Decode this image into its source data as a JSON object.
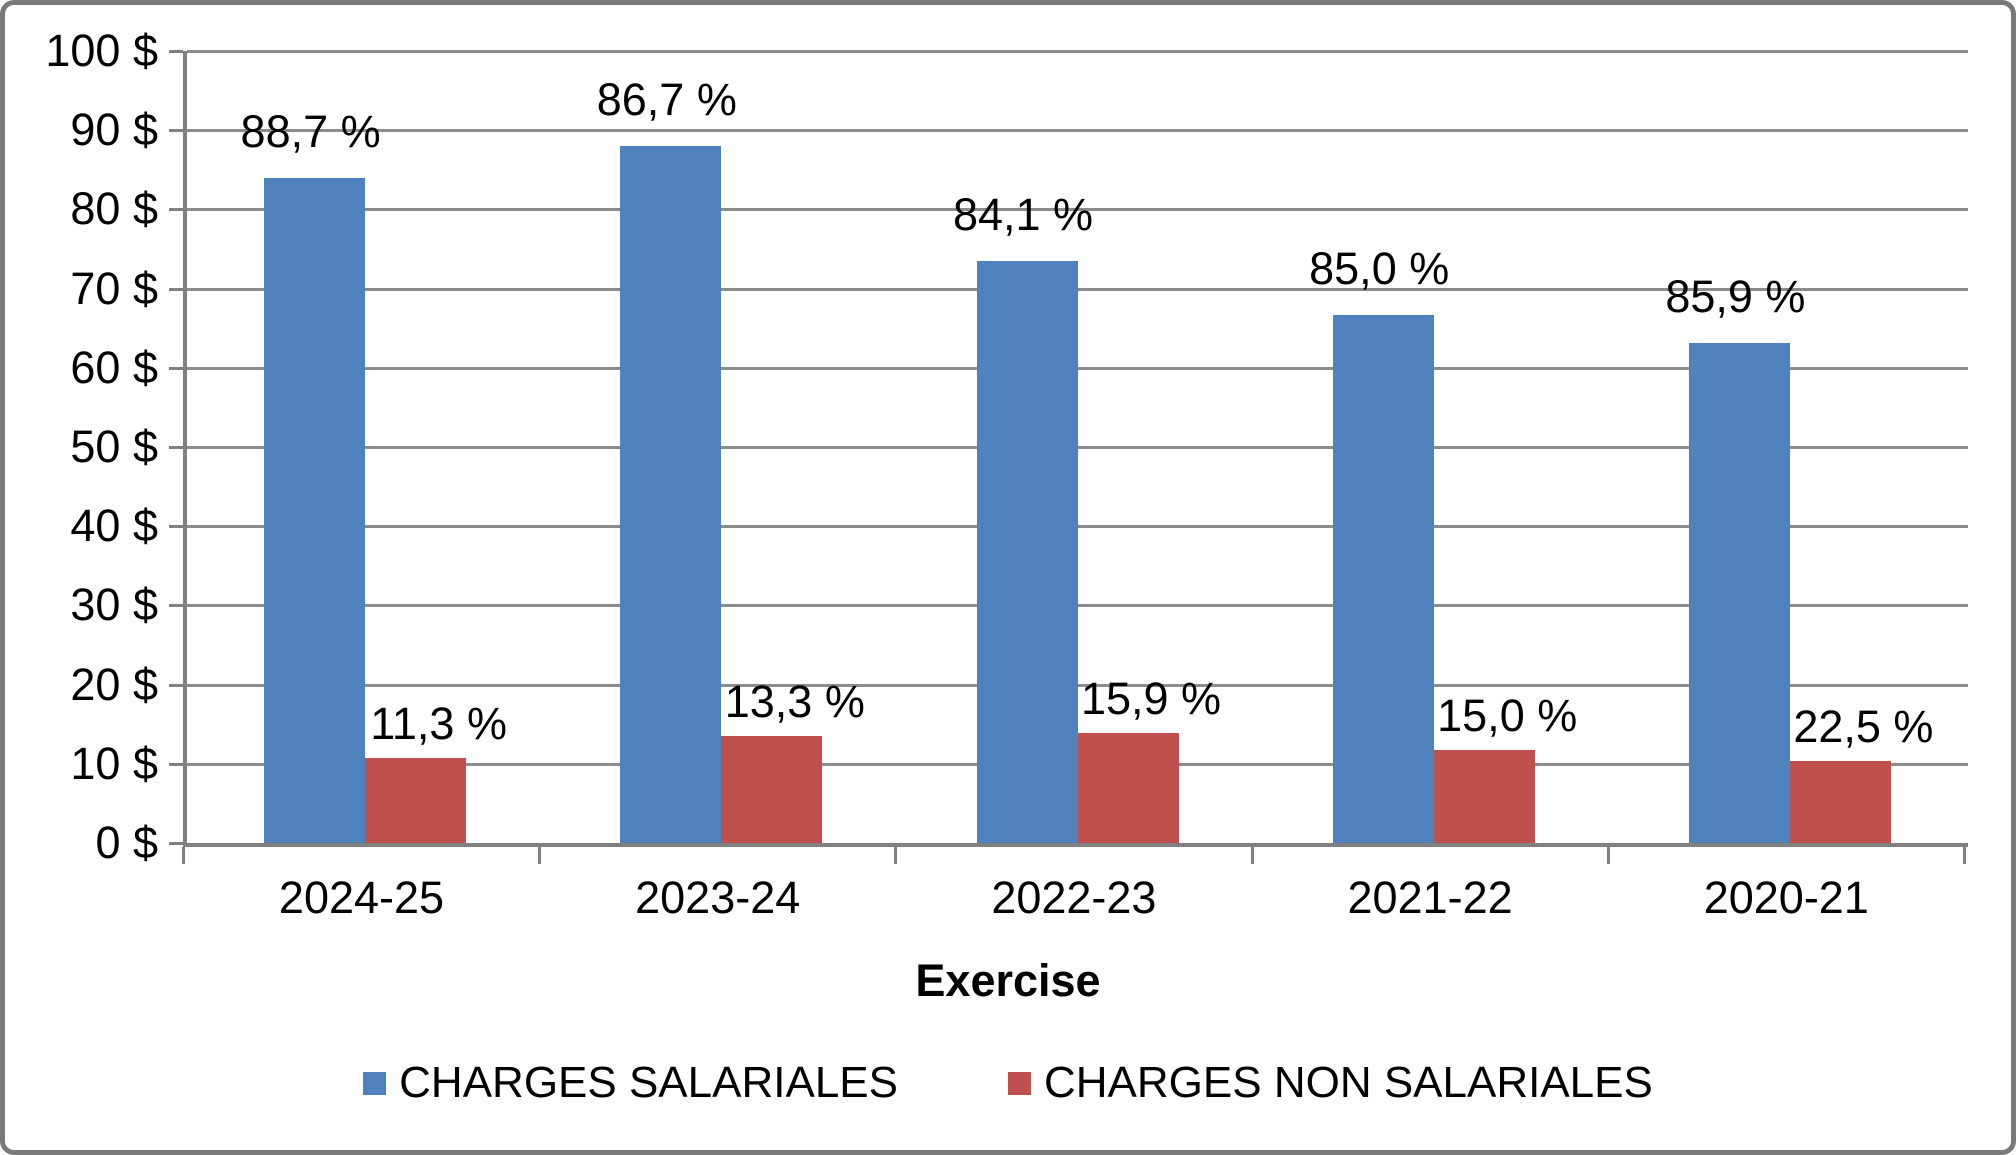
{
  "chart_data": {
    "type": "bar",
    "title": "",
    "xlabel": "Exercise",
    "ylabel": "",
    "ylim": [
      0,
      100
    ],
    "y_step": 10,
    "grid": true,
    "legend_position": "bottom",
    "y_tick_labels": [
      "0 $",
      "10 $",
      "20 $",
      "30 $",
      "40 $",
      "50 $",
      "60 $",
      "70 $",
      "80 $",
      "90 $",
      "100 $"
    ],
    "categories": [
      "2024-25",
      "2023-24",
      "2022-23",
      "2021-22",
      "2020-21"
    ],
    "series": [
      {
        "name": "CHARGES SALARIALES",
        "color": "#4F81BD",
        "values": [
          84.0,
          88.0,
          73.5,
          66.7,
          63.1
        ],
        "data_labels": [
          "88,7 %",
          "86,7 %",
          "84,1 %",
          "85,0 %",
          "85,9 %"
        ]
      },
      {
        "name": "CHARGES NON SALARIALES",
        "color": "#C0504D",
        "values": [
          10.7,
          13.5,
          13.9,
          11.8,
          10.4
        ],
        "data_labels": [
          "11,3 %",
          "13,3 %",
          "15,9 %",
          "15,0 %",
          "22,5 %"
        ]
      }
    ]
  },
  "colors": {
    "gridline": "#8c8c8c",
    "axis": "#808080",
    "frame_border": "#7a7a7a",
    "text": "#000000",
    "background": "#ffffff"
  }
}
